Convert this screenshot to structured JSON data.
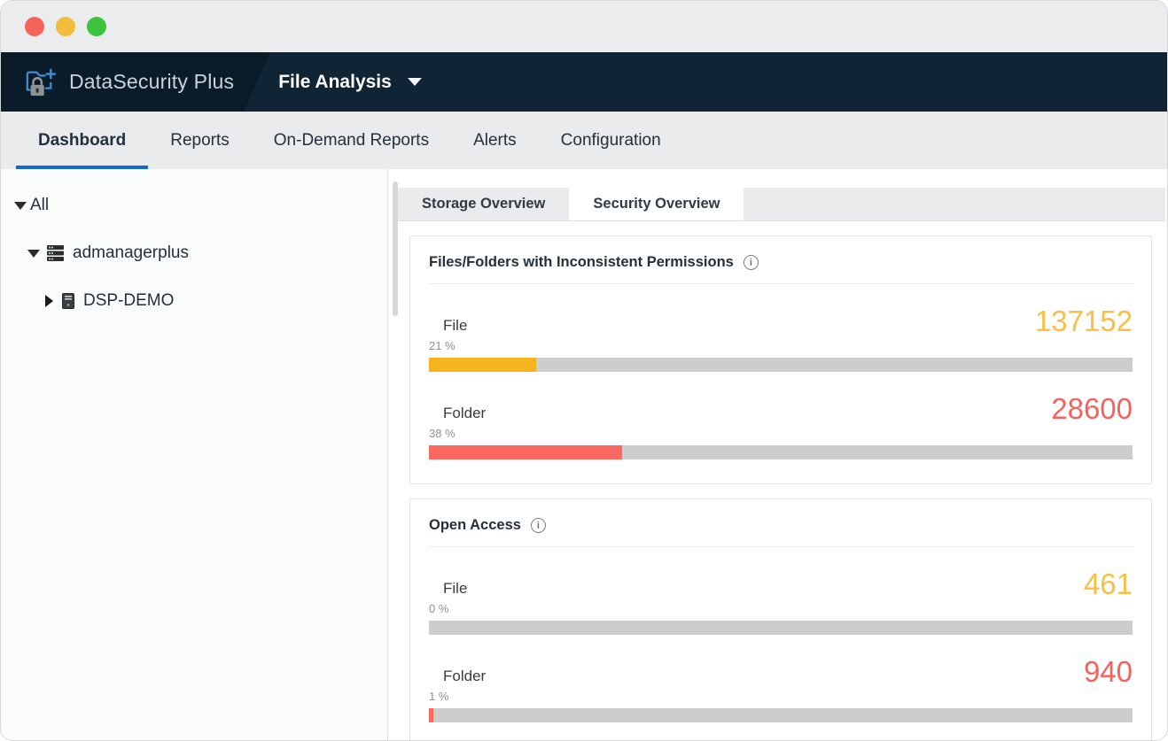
{
  "window": {
    "traffic_lights": [
      {
        "name": "close",
        "color": "#f5635a"
      },
      {
        "name": "minimize",
        "color": "#f2bd3c"
      },
      {
        "name": "zoom",
        "color": "#3cc33e"
      }
    ]
  },
  "header": {
    "brand": "DataSecurity Plus",
    "brand_icon": "folder-lock-plus-icon",
    "product_menu": {
      "label": "File Analysis",
      "icon": "chevron-down-icon"
    },
    "colors": {
      "bar_bg": "#0f2434",
      "wedge_bg": "#0a1b29"
    }
  },
  "nav": {
    "items": [
      {
        "label": "Dashboard",
        "active": true
      },
      {
        "label": "Reports",
        "active": false
      },
      {
        "label": "On-Demand Reports",
        "active": false
      },
      {
        "label": "Alerts",
        "active": false
      },
      {
        "label": "Configuration",
        "active": false
      }
    ],
    "active_underline_color": "#1467ce"
  },
  "sidebar": {
    "tree": [
      {
        "label": "All",
        "level": 0,
        "expanded": true,
        "icon": null
      },
      {
        "label": "admanagerplus",
        "level": 1,
        "expanded": true,
        "icon": "server-stack"
      },
      {
        "label": "DSP-DEMO",
        "level": 2,
        "expanded": false,
        "icon": "server"
      }
    ]
  },
  "main": {
    "tabs": [
      {
        "label": "Storage Overview",
        "active": false
      },
      {
        "label": "Security Overview",
        "active": true
      }
    ],
    "cards": [
      {
        "title": "Files/Folders with Inconsistent Permissions",
        "info_icon": "info-icon",
        "rows": [
          {
            "label": "File",
            "value": "137152",
            "percent_label": "21 %",
            "bar_fill_pct": 15.3,
            "bar_color": "#f5b41e",
            "value_color": "#f7c044"
          },
          {
            "label": "Folder",
            "value": "28600",
            "percent_label": "38 %",
            "bar_fill_pct": 27.5,
            "bar_color": "#fa6862",
            "value_color": "#f5625e"
          }
        ],
        "bar_track_color": "#cdcdcd"
      },
      {
        "title": "Open Access",
        "info_icon": "info-icon",
        "rows": [
          {
            "label": "File",
            "value": "461",
            "percent_label": "0 %",
            "bar_fill_pct": 0,
            "bar_color": "#f5b41e",
            "value_color": "#f7c044"
          },
          {
            "label": "Folder",
            "value": "940",
            "percent_label": "1 %",
            "bar_fill_pct": 0.65,
            "bar_color": "#fa6862",
            "value_color": "#f5625e"
          }
        ],
        "bar_track_color": "#cdcdcd"
      }
    ]
  }
}
